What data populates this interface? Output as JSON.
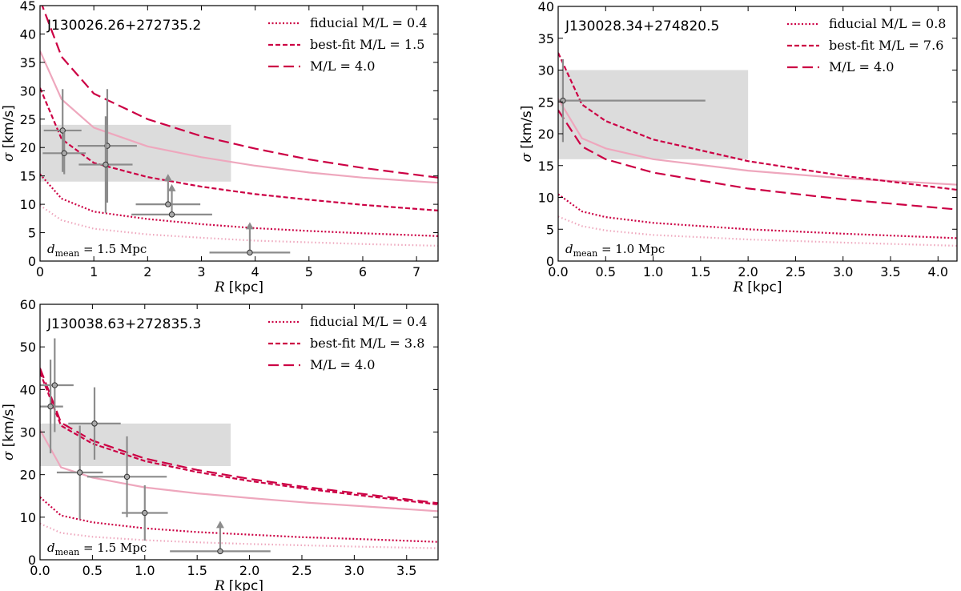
{
  "chart_data": [
    {
      "type": "line",
      "title": "J130026.26+272735.2",
      "xlabel": "R",
      "xunit": "[kpc]",
      "ylabel": "σ",
      "yunit": "[km/s]",
      "xlim": [
        0,
        7.4
      ],
      "ylim": [
        0,
        45
      ],
      "xticks": [
        0,
        1,
        2,
        3,
        4,
        5,
        6,
        7
      ],
      "yticks": [
        0,
        5,
        10,
        15,
        20,
        25,
        30,
        35,
        40,
        45
      ],
      "xtick_labels": [
        "0",
        "1",
        "2",
        "3",
        "4",
        "5",
        "6",
        "7"
      ],
      "ytick_labels": [
        "0",
        "5",
        "10",
        "15",
        "20",
        "25",
        "30",
        "35",
        "40",
        "45"
      ],
      "annotation": {
        "prefix": "d",
        "subscript": "mean",
        "value": " = 1.5 Mpc"
      },
      "legend": [
        {
          "label": "fiducial M/L = 0.4",
          "style": "dotted"
        },
        {
          "label": "best-fit M/L = 1.5",
          "style": "dashed"
        },
        {
          "label": "M/L = 4.0",
          "style": "longdash"
        }
      ],
      "band": {
        "x": [
          0,
          3.55
        ],
        "y": [
          14,
          24
        ]
      },
      "series": [
        {
          "name": "fiducial M/L = 0.4",
          "style": "dotted",
          "x": [
            0,
            0.4,
            1,
            2,
            3,
            4,
            5,
            6,
            7.4
          ],
          "y": [
            15.3,
            11,
            8.7,
            7.4,
            6.5,
            5.8,
            5.3,
            4.9,
            4.4
          ]
        },
        {
          "name": "best-fit M/L = 1.5",
          "style": "dashed",
          "x": [
            0,
            0.4,
            1,
            2,
            3,
            4,
            5,
            6,
            7.4
          ],
          "y": [
            30.5,
            21.5,
            17.3,
            14.8,
            13.1,
            11.8,
            10.8,
            9.9,
            8.9
          ]
        },
        {
          "name": "M/L = 4.0",
          "style": "longdash",
          "x": [
            0,
            0.4,
            1,
            2,
            3,
            4,
            5,
            6,
            7.4
          ],
          "y": [
            46,
            36,
            29.5,
            25,
            22,
            19.8,
            17.9,
            16.4,
            14.7
          ]
        },
        {
          "name": "light-solid",
          "style": "lightsolid",
          "x": [
            0,
            0.4,
            1,
            2,
            3,
            4,
            5,
            6,
            7.4
          ],
          "y": [
            37,
            28.5,
            23.5,
            20.2,
            18.3,
            16.8,
            15.6,
            14.7,
            13.8
          ]
        },
        {
          "name": "light-dotted",
          "style": "lightdotted",
          "x": [
            0,
            0.4,
            1,
            2,
            3,
            4,
            5,
            6,
            7.4
          ],
          "y": [
            9.8,
            7.2,
            5.7,
            4.7,
            4.1,
            3.6,
            3.3,
            3.0,
            2.7
          ]
        }
      ],
      "points": [
        {
          "x": 0.42,
          "y": 23,
          "xerr": 0.35,
          "yerr": 7.3,
          "limit": false
        },
        {
          "x": 0.45,
          "y": 19,
          "xerr": 0.4,
          "yerr": 3.7,
          "limit": false
        },
        {
          "x": 1.25,
          "y": 20.3,
          "xerr": 0.55,
          "yerr": 10,
          "limit": false
        },
        {
          "x": 1.22,
          "y": 17,
          "xerr": 0.5,
          "yerr": 8.5,
          "limit": false
        },
        {
          "x": 2.38,
          "y": 10,
          "xerr": 0.6,
          "limit": true
        },
        {
          "x": 2.45,
          "y": 8.2,
          "xerr": 0.75,
          "limit": true
        },
        {
          "x": 3.9,
          "y": 1.5,
          "xerr": 0.75,
          "limit": true
        }
      ]
    },
    {
      "type": "line",
      "title": "J130028.34+274820.5",
      "xlabel": "R",
      "xunit": "[kpc]",
      "ylabel": "σ",
      "yunit": "[km/s]",
      "xlim": [
        0,
        4.2
      ],
      "ylim": [
        0,
        40
      ],
      "xticks": [
        0,
        0.5,
        1,
        1.5,
        2,
        2.5,
        3,
        3.5,
        4
      ],
      "yticks": [
        0,
        5,
        10,
        15,
        20,
        25,
        30,
        35,
        40
      ],
      "xtick_labels": [
        "0.0",
        "0.5",
        "1.0",
        "1.5",
        "2.0",
        "2.5",
        "3.0",
        "3.5",
        "4.0"
      ],
      "ytick_labels": [
        "0",
        "5",
        "10",
        "15",
        "20",
        "25",
        "30",
        "35",
        "40"
      ],
      "annotation": {
        "prefix": "d",
        "subscript": "mean",
        "value": " = 1.0 Mpc"
      },
      "legend": [
        {
          "label": "fiducial M/L = 0.8",
          "style": "dotted"
        },
        {
          "label": "best-fit M/L = 7.6",
          "style": "dashed"
        },
        {
          "label": "M/L = 4.0",
          "style": "longdash"
        }
      ],
      "band": {
        "x": [
          0,
          2.0
        ],
        "y": [
          16,
          30
        ]
      },
      "series": [
        {
          "name": "fiducial M/L = 0.8",
          "style": "dotted",
          "x": [
            0,
            0.25,
            0.5,
            1,
            2,
            3,
            4.2
          ],
          "y": [
            10.5,
            7.8,
            6.9,
            6,
            5,
            4.3,
            3.6
          ]
        },
        {
          "name": "best-fit M/L = 7.6",
          "style": "dashed",
          "x": [
            0,
            0.25,
            0.5,
            1,
            2,
            3,
            4.2
          ],
          "y": [
            32.7,
            24.6,
            22,
            19.1,
            15.7,
            13.4,
            11.2
          ]
        },
        {
          "name": "M/L = 4.0",
          "style": "longdash",
          "x": [
            0,
            0.25,
            0.5,
            1,
            2,
            3,
            4.2
          ],
          "y": [
            23.7,
            18,
            16,
            13.9,
            11.4,
            9.7,
            8.1
          ]
        },
        {
          "name": "light-solid",
          "style": "lightsolid",
          "x": [
            0,
            0.25,
            0.5,
            1,
            2,
            3,
            4.2
          ],
          "y": [
            25.5,
            19.3,
            17.7,
            16,
            14.2,
            13,
            12
          ]
        },
        {
          "name": "light-dotted",
          "style": "lightdotted",
          "x": [
            0,
            0.25,
            0.5,
            1,
            2,
            3,
            4.2
          ],
          "y": [
            7,
            5.5,
            4.8,
            4.1,
            3.4,
            2.9,
            2.4
          ]
        }
      ],
      "points": [
        {
          "x": 0.05,
          "y": 25.2,
          "xerr": 1.5,
          "yerr": 6.5,
          "limit": false
        }
      ]
    },
    {
      "type": "line",
      "title": "J130038.63+272835.3",
      "xlabel": "R",
      "xunit": "[kpc]",
      "ylabel": "σ",
      "yunit": "[km/s]",
      "xlim": [
        0,
        3.8
      ],
      "ylim": [
        0,
        60
      ],
      "xticks": [
        0,
        0.5,
        1,
        1.5,
        2,
        2.5,
        3,
        3.5
      ],
      "yticks": [
        0,
        10,
        20,
        30,
        40,
        50,
        60
      ],
      "xtick_labels": [
        "0.0",
        "0.5",
        "1.0",
        "1.5",
        "2.0",
        "2.5",
        "3.0",
        "3.5"
      ],
      "ytick_labels": [
        "0",
        "10",
        "20",
        "30",
        "40",
        "50",
        "60"
      ],
      "annotation": {
        "prefix": "d",
        "subscript": "mean",
        "value": " = 1.5 Mpc"
      },
      "legend": [
        {
          "label": "fiducial M/L = 0.4",
          "style": "dotted"
        },
        {
          "label": "best-fit M/L = 3.8",
          "style": "dashed"
        },
        {
          "label": "M/L = 4.0",
          "style": "longdash"
        }
      ],
      "band": {
        "x": [
          0,
          1.82
        ],
        "y": [
          22,
          32
        ]
      },
      "series": [
        {
          "name": "fiducial M/L = 0.4",
          "style": "dotted",
          "x": [
            0,
            0.2,
            0.5,
            1,
            1.5,
            2,
            2.5,
            3,
            3.8
          ],
          "y": [
            14.7,
            10.4,
            8.8,
            7.4,
            6.5,
            5.9,
            5.3,
            4.9,
            4.2
          ]
        },
        {
          "name": "best-fit M/L = 3.8",
          "style": "dashed",
          "x": [
            0,
            0.2,
            0.5,
            1,
            1.5,
            2,
            2.5,
            3,
            3.8
          ],
          "y": [
            44,
            31.5,
            27.3,
            23.2,
            20.6,
            18.5,
            16.8,
            15.3,
            13.0
          ]
        },
        {
          "name": "M/L = 4.0",
          "style": "longdash",
          "x": [
            0,
            0.2,
            0.5,
            1,
            1.5,
            2,
            2.5,
            3,
            3.8
          ],
          "y": [
            45,
            32.2,
            28,
            23.8,
            21.1,
            19,
            17.2,
            15.7,
            13.3
          ]
        },
        {
          "name": "light-solid",
          "style": "lightsolid",
          "x": [
            0,
            0.2,
            0.5,
            1,
            1.5,
            2,
            2.5,
            3,
            3.8
          ],
          "y": [
            30.5,
            21.7,
            19.3,
            17,
            15.6,
            14.5,
            13.5,
            12.7,
            11.4
          ]
        },
        {
          "name": "light-dotted",
          "style": "lightdotted",
          "x": [
            0,
            0.2,
            0.5,
            1,
            1.5,
            2,
            2.5,
            3,
            3.8
          ],
          "y": [
            8.5,
            6.3,
            5.4,
            4.6,
            4.1,
            3.7,
            3.4,
            3.1,
            2.7
          ]
        }
      ],
      "points": [
        {
          "x": 0.1,
          "y": 36,
          "xerr": 0.12,
          "yerr": 11,
          "limit": false
        },
        {
          "x": 0.14,
          "y": 41,
          "xerr": 0.18,
          "yerr": 11,
          "limit": false
        },
        {
          "x": 0.38,
          "y": 20.5,
          "xerr": 0.22,
          "yerr": 11,
          "limit": false
        },
        {
          "x": 0.52,
          "y": 32,
          "xerr": 0.25,
          "yerr": 8.5,
          "limit": false
        },
        {
          "x": 0.83,
          "y": 19.5,
          "xerr": 0.38,
          "yerr": 9.5,
          "limit": false
        },
        {
          "x": 1.0,
          "y": 11,
          "xerr": 0.22,
          "yerr": 6.5,
          "limit": false
        },
        {
          "x": 1.72,
          "y": 2,
          "xerr": 0.48,
          "limit": true
        }
      ]
    }
  ],
  "colors": {
    "crimson": "#cc0044",
    "pink": "#eea7bd",
    "band": "#dcdcdc",
    "points": "#8c8c8c",
    "marker_fill": "#aaaaaa",
    "axes": "#000000"
  }
}
